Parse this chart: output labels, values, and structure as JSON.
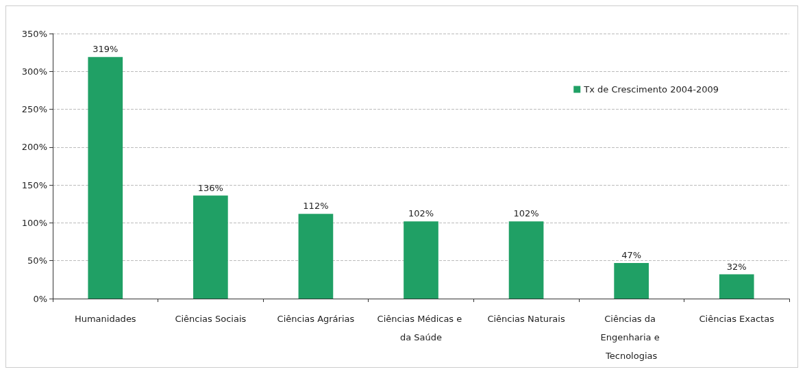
{
  "chart_data": {
    "type": "bar",
    "categories": [
      "Humanidades",
      "Ciências Sociais",
      "Ciências Agrárias",
      "Ciências Médicas e da Saúde",
      "Ciências Naturais",
      "Ciências da Engenharia e Tecnologias",
      "Ciências Exactas"
    ],
    "series": [
      {
        "name": "Tx de Crescimento 2004-2009",
        "color": "#20a065",
        "values": [
          319,
          136,
          112,
          102,
          102,
          47,
          32
        ],
        "value_labels": [
          "319%",
          "136%",
          "112%",
          "102%",
          "102%",
          "47%",
          "32%"
        ]
      }
    ],
    "ylim": [
      0,
      350
    ],
    "yticks": [
      {
        "value": 0,
        "label": "0%"
      },
      {
        "value": 50,
        "label": "50%"
      },
      {
        "value": 100,
        "label": "100%"
      },
      {
        "value": 150,
        "label": "150%"
      },
      {
        "value": 200,
        "label": "200%"
      },
      {
        "value": 250,
        "label": "250%"
      },
      {
        "value": 300,
        "label": "300%"
      },
      {
        "value": 350,
        "label": "350%"
      }
    ],
    "grid": "y",
    "legend": "top right"
  }
}
